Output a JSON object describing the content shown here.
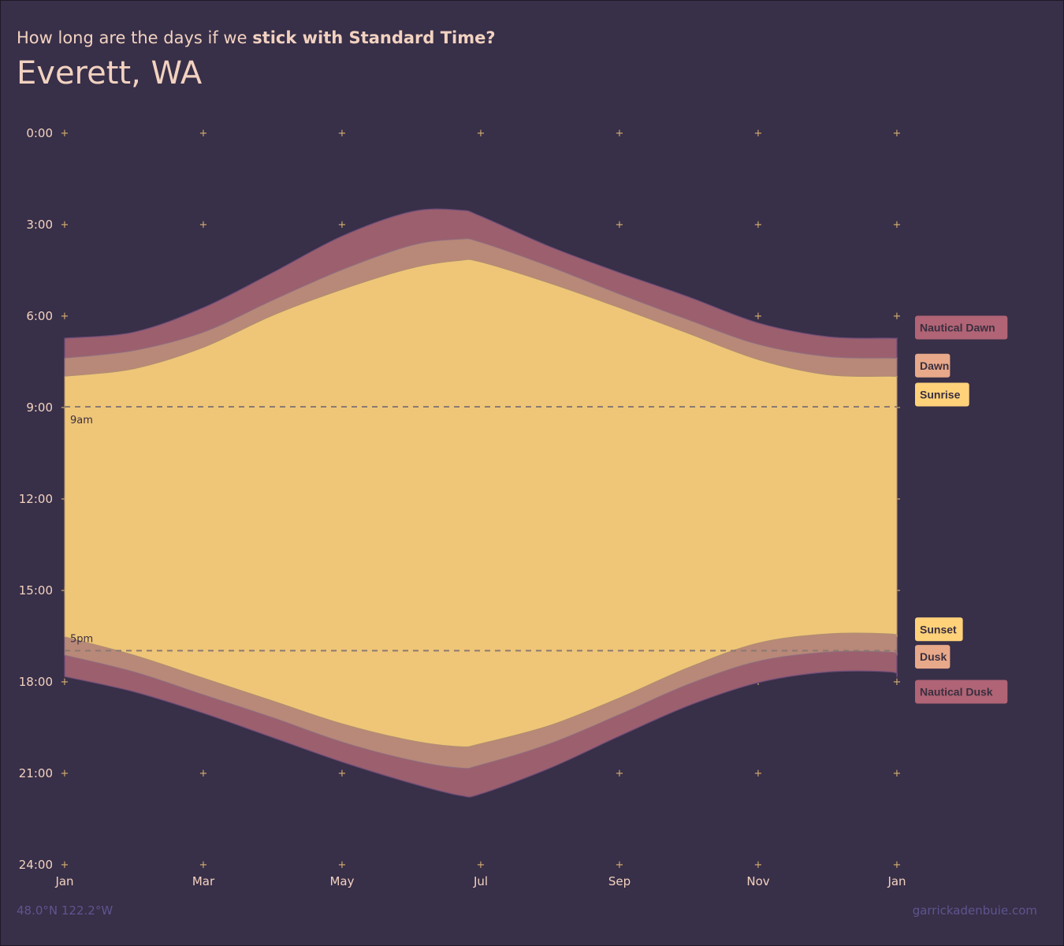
{
  "header": {
    "subtitle_plain": "How long are the days if we ",
    "subtitle_bold": "stick with Standard Time?",
    "title": "Everett, WA"
  },
  "footer": {
    "coords": "48.0°N 122.2°W",
    "credit": "garrickadenbuie.com"
  },
  "colors": {
    "background": "#382f48",
    "nautical": "#9c5f6e",
    "civil": "#b88878",
    "day": "#efc678",
    "text": "#f2d2c0",
    "reference_line": "#8a7a70"
  },
  "chart_data": {
    "type": "area",
    "y_axis": {
      "labels": [
        "0:00",
        "3:00",
        "6:00",
        "9:00",
        "12:00",
        "15:00",
        "18:00",
        "21:00",
        "24:00"
      ],
      "ylim": [
        0,
        24
      ],
      "inverted": true,
      "unit": "hour of day"
    },
    "x_axis": {
      "labels": [
        "Jan",
        "Mar",
        "May",
        "Jul",
        "Sep",
        "Nov",
        "Jan"
      ],
      "tick_months": [
        0,
        2,
        4,
        6,
        8,
        10,
        12
      ]
    },
    "grid": "plus-markers",
    "months": [
      0,
      1,
      2,
      3,
      4,
      5,
      5.7,
      6,
      7,
      8,
      9,
      10,
      11,
      11.9,
      12
    ],
    "series": [
      {
        "name": "Nautical Dawn",
        "values": [
          6.75,
          6.55,
          5.75,
          4.6,
          3.4,
          2.6,
          2.55,
          2.75,
          3.75,
          4.6,
          5.4,
          6.25,
          6.7,
          6.75,
          6.75
        ]
      },
      {
        "name": "Dawn",
        "values": [
          7.4,
          7.15,
          6.55,
          5.5,
          4.5,
          3.7,
          3.5,
          3.6,
          4.4,
          5.3,
          6.15,
          6.95,
          7.35,
          7.4,
          7.4
        ]
      },
      {
        "name": "Sunrise",
        "values": [
          8.0,
          7.75,
          7.05,
          6.0,
          5.15,
          4.45,
          4.2,
          4.25,
          4.95,
          5.75,
          6.6,
          7.45,
          7.95,
          8.0,
          8.0
        ]
      },
      {
        "name": "Sunset",
        "values": [
          16.55,
          17.15,
          17.9,
          18.65,
          19.4,
          19.95,
          20.15,
          20.05,
          19.45,
          18.55,
          17.55,
          16.75,
          16.45,
          16.45,
          16.55
        ]
      },
      {
        "name": "Dusk",
        "values": [
          17.15,
          17.7,
          18.45,
          19.2,
          20.0,
          20.6,
          20.85,
          20.75,
          20.05,
          19.1,
          18.1,
          17.35,
          17.05,
          17.05,
          17.15
        ]
      },
      {
        "name": "Nautical Dusk",
        "values": [
          17.85,
          18.35,
          19.05,
          19.85,
          20.65,
          21.35,
          21.75,
          21.7,
          20.85,
          19.8,
          18.8,
          18.05,
          17.7,
          17.7,
          17.85
        ]
      }
    ],
    "reference_lines": [
      {
        "label": "9am",
        "value": 9
      },
      {
        "label": "5pm",
        "value": 17
      }
    ],
    "legend": [
      {
        "label": "Nautical Dawn",
        "color": "#b06475",
        "text_color": "#3a2f40"
      },
      {
        "label": "Dawn",
        "color": "#e8a98a",
        "text_color": "#3a2f40"
      },
      {
        "label": "Sunrise",
        "color": "#ffd27a",
        "text_color": "#3a2f40"
      },
      {
        "label": "Sunset",
        "color": "#ffd27a",
        "text_color": "#3a2f40"
      },
      {
        "label": "Dusk",
        "color": "#e8a98a",
        "text_color": "#3a2f40"
      },
      {
        "label": "Nautical Dusk",
        "color": "#b06475",
        "text_color": "#3a2f40"
      }
    ],
    "legend_placement": "right"
  }
}
